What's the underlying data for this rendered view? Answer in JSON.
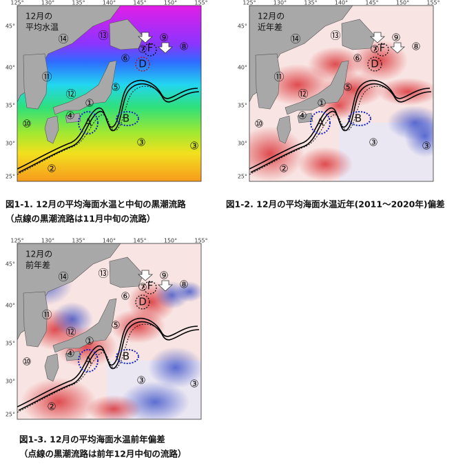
{
  "panels": [
    {
      "label": [
        "12月の",
        "平均水温"
      ],
      "caption": [
        "図1-1. 12月の平均海面水温と中旬の黒潮流路",
        "（点線の黒潮流路は11月中旬の流路）"
      ]
    },
    {
      "label": [
        "12月の",
        "近年差"
      ],
      "caption": [
        "図1-2. 12月の平均海面水温近年(2011～2020年)偏差"
      ]
    },
    {
      "label": [
        "12月の",
        "前年差"
      ],
      "caption": [
        "図1-3. 12月の平均海面水温前年偏差",
        "（点線の黒潮流路は前年12月中旬の流路）"
      ]
    }
  ],
  "lon_ticks": [
    "125°",
    "130°",
    "135°",
    "140°",
    "145°",
    "150°",
    "155°"
  ],
  "lat_ticks": [
    "45°",
    "40°",
    "35°",
    "30°",
    "25°"
  ],
  "markers": [
    "⑭",
    "⑬",
    "⑨",
    "⑧",
    "⑦",
    "F",
    "D",
    "⑥",
    "⑪",
    "⑫",
    "⑤",
    "①",
    "④",
    "⑩",
    "A",
    "B",
    "③",
    "③",
    "②"
  ]
}
